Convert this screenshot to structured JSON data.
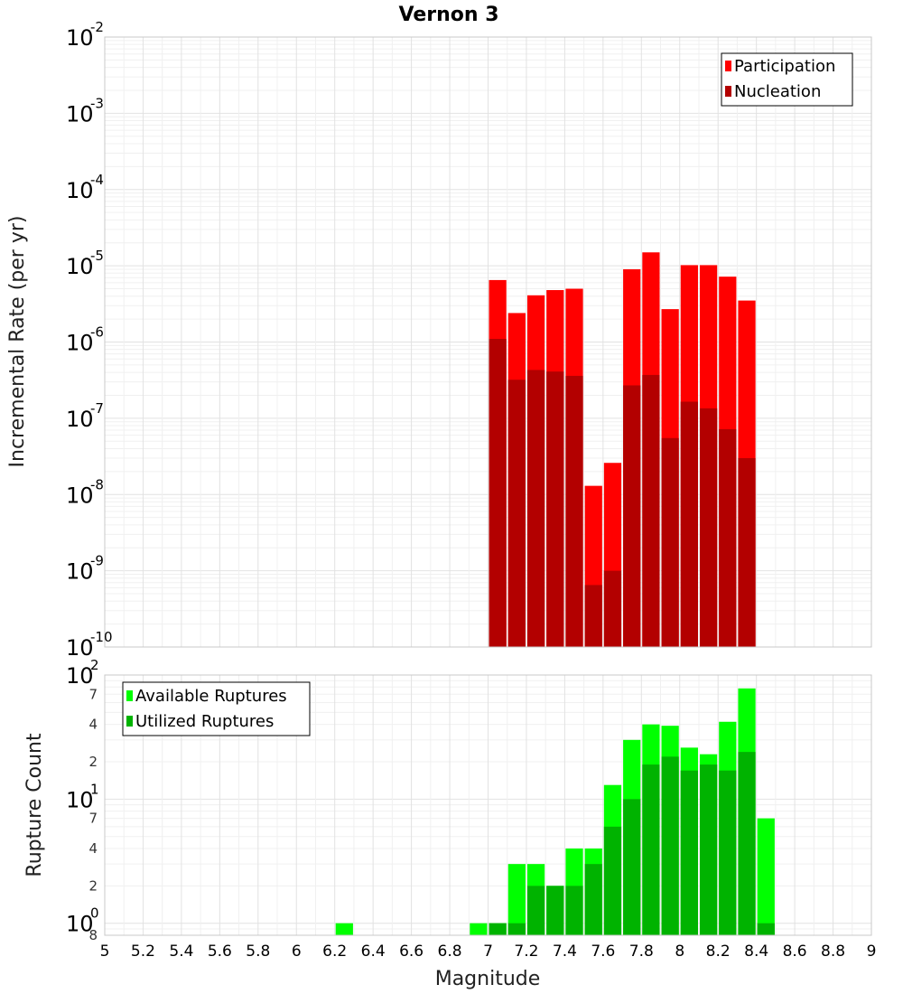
{
  "chart_data": [
    {
      "type": "bar",
      "title": "Vernon 3",
      "xlabel": "Magnitude",
      "ylabel": "Incremental Rate (per yr)",
      "yscale": "log",
      "xlim": [
        5,
        9
      ],
      "ylim": [
        1e-10,
        0.01
      ],
      "ytick_exponents": [
        "-10",
        "-9",
        "-8",
        "-7",
        "-6",
        "-5",
        "-4",
        "-3",
        "-2"
      ],
      "ytick_base": "10",
      "xticks": [
        "5",
        "5.2",
        "5.4",
        "5.6",
        "5.8",
        "6",
        "6.2",
        "6.4",
        "6.6",
        "6.8",
        "7",
        "7.2",
        "7.4",
        "7.6",
        "7.8",
        "8",
        "8.2",
        "8.4",
        "8.6",
        "8.8",
        "9"
      ],
      "legend_position": "top-right",
      "categories": [
        7.05,
        7.15,
        7.25,
        7.35,
        7.45,
        7.55,
        7.65,
        7.75,
        7.85,
        7.95,
        8.05,
        8.15,
        8.25,
        8.35
      ],
      "series": [
        {
          "name": "Participation",
          "color": "#ff0000",
          "values": [
            6.5e-06,
            2.4e-06,
            4.1e-06,
            4.8e-06,
            5e-06,
            1.3e-08,
            2.6e-08,
            9e-06,
            1.5e-05,
            2.7e-06,
            1.02e-05,
            1.02e-05,
            7.2e-06,
            3.5e-06
          ]
        },
        {
          "name": "Nucleation",
          "color": "#b30000",
          "values": [
            1.1e-06,
            3.2e-07,
            4.3e-07,
            4.1e-07,
            3.6e-07,
            6.5e-10,
            1e-09,
            2.7e-07,
            3.7e-07,
            5.5e-08,
            1.65e-07,
            1.35e-07,
            7.2e-08,
            3e-08
          ]
        }
      ]
    },
    {
      "type": "bar",
      "title": "",
      "xlabel": "Magnitude",
      "ylabel": "Rupture Count",
      "yscale": "log",
      "xlim": [
        5,
        9
      ],
      "ylim": [
        0.8,
        100
      ],
      "ytick_base": "10",
      "ytick_exponents": [
        "0",
        "1",
        "2"
      ],
      "minor_ticks": [
        {
          "value": 0.8,
          "label": "8"
        },
        {
          "value": 2,
          "label": "2"
        },
        {
          "value": 4,
          "label": "4"
        },
        {
          "value": 7,
          "label": "7"
        },
        {
          "value": 20,
          "label": "2"
        },
        {
          "value": 40,
          "label": "4"
        },
        {
          "value": 70,
          "label": "7"
        }
      ],
      "legend_position": "top-left",
      "categories": [
        6.25,
        6.95,
        7.05,
        7.15,
        7.25,
        7.35,
        7.45,
        7.55,
        7.65,
        7.75,
        7.85,
        7.95,
        8.05,
        8.15,
        8.25,
        8.35,
        8.45
      ],
      "series": [
        {
          "name": "Available Ruptures",
          "color": "#00ff00",
          "values": [
            1,
            1,
            1,
            3,
            3,
            2,
            4,
            4,
            13,
            30,
            40,
            39,
            26,
            23,
            42,
            78,
            7
          ]
        },
        {
          "name": "Utilized Ruptures",
          "color": "#00b300",
          "values": [
            0,
            0,
            1,
            1,
            2,
            2,
            2,
            3,
            6,
            10,
            19,
            22,
            17,
            19,
            17,
            24,
            1
          ]
        }
      ]
    }
  ]
}
